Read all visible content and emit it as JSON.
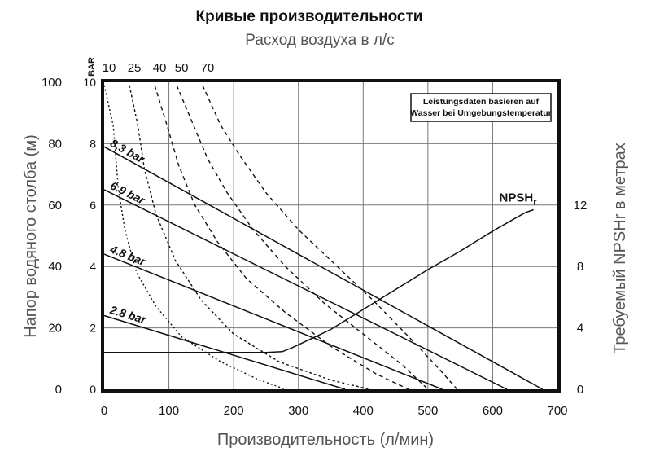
{
  "chart_data": {
    "type": "line",
    "title": "Кривые производительности",
    "subtitle": "Расход воздуха в л/с",
    "xlabel": "Производительность (л/мин)",
    "ylabel_left": "Напор водяного столба (м)",
    "ylabel_left_bar_unit": "BAR",
    "ylabel_right": "Требуемый  NPSHr в метрах",
    "xlim": [
      0,
      700
    ],
    "ylim": [
      0,
      100
    ],
    "x_ticks": [
      "0",
      "100",
      "200",
      "300",
      "400",
      "500",
      "600",
      "700"
    ],
    "y_ticks_m": [
      "0",
      "20",
      "40",
      "60",
      "80",
      "100"
    ],
    "y_ticks_bar": [
      "0",
      "2",
      "4",
      "6",
      "8",
      "10"
    ],
    "y_ticks_npsh": [
      "0",
      "4",
      "8",
      "12"
    ],
    "npsh_ylim": [
      0,
      20
    ],
    "grid": true,
    "note_lines": [
      "Leistungsdaten basieren auf",
      "Wasser bei Umgebungstemperatur"
    ],
    "pressure_series": [
      {
        "name": "8.3 bar",
        "points": [
          [
            0,
            79
          ],
          [
            677,
            0
          ]
        ]
      },
      {
        "name": "6.9 bar",
        "points": [
          [
            0,
            65
          ],
          [
            622,
            0
          ]
        ]
      },
      {
        "name": "4.8 bar",
        "points": [
          [
            0,
            44
          ],
          [
            522,
            0
          ]
        ]
      },
      {
        "name": "2.8 bar",
        "points": [
          [
            0,
            24
          ],
          [
            372,
            0
          ]
        ]
      }
    ],
    "npsh_series": {
      "name": "NPSHr",
      "name_main": "NPSH",
      "name_sub": "r",
      "points": [
        [
          0,
          2.4
        ],
        [
          250,
          2.4
        ],
        [
          275,
          2.45
        ],
        [
          290,
          2.7
        ],
        [
          310,
          3.1
        ],
        [
          350,
          3.9
        ],
        [
          400,
          5.2
        ],
        [
          450,
          6.5
        ],
        [
          500,
          7.8
        ],
        [
          550,
          9.0
        ],
        [
          600,
          10.3
        ],
        [
          650,
          11.5
        ],
        [
          663,
          11.7
        ]
      ]
    },
    "air_series": [
      {
        "name": "10",
        "points": [
          [
            0,
            99
          ],
          [
            14,
            86
          ],
          [
            22,
            65
          ],
          [
            32,
            52
          ],
          [
            50,
            38
          ],
          [
            80,
            27
          ],
          [
            120,
            17
          ],
          [
            180,
            9
          ],
          [
            240,
            3
          ],
          [
            280,
            0
          ]
        ]
      },
      {
        "name": "25",
        "points": [
          [
            39,
            99
          ],
          [
            52,
            86
          ],
          [
            62,
            72
          ],
          [
            80,
            57
          ],
          [
            110,
            42
          ],
          [
            150,
            29
          ],
          [
            200,
            18
          ],
          [
            270,
            9
          ],
          [
            350,
            3
          ],
          [
            410,
            0
          ]
        ]
      },
      {
        "name": "40",
        "points": [
          [
            78,
            99
          ],
          [
            97,
            86
          ],
          [
            115,
            73
          ],
          [
            140,
            60
          ],
          [
            175,
            48
          ],
          [
            220,
            36
          ],
          [
            280,
            25
          ],
          [
            350,
            14
          ],
          [
            420,
            5
          ],
          [
            470,
            0
          ]
        ]
      },
      {
        "name": "50",
        "points": [
          [
            112,
            99
          ],
          [
            138,
            86
          ],
          [
            160,
            75
          ],
          [
            190,
            64
          ],
          [
            230,
            52
          ],
          [
            280,
            40
          ],
          [
            340,
            28
          ],
          [
            400,
            18
          ],
          [
            460,
            8
          ],
          [
            500,
            0
          ]
        ]
      },
      {
        "name": "70",
        "points": [
          [
            152,
            99
          ],
          [
            180,
            86
          ],
          [
            210,
            76
          ],
          [
            250,
            64
          ],
          [
            300,
            52
          ],
          [
            360,
            40
          ],
          [
            420,
            28
          ],
          [
            480,
            15
          ],
          [
            520,
            6
          ],
          [
            545,
            0
          ]
        ]
      }
    ]
  }
}
